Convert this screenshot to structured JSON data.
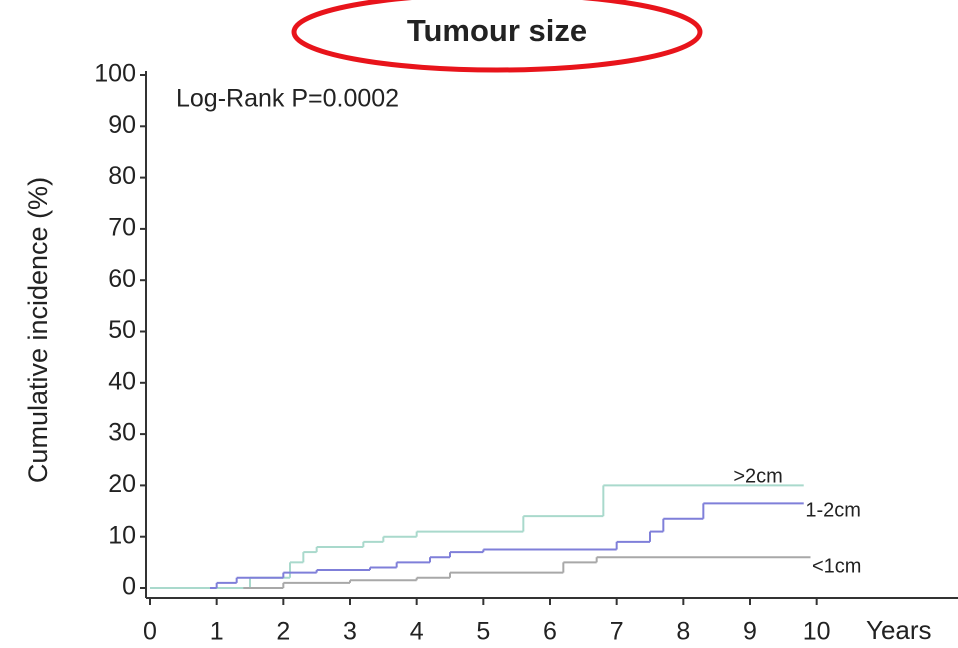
{
  "chart_data": {
    "type": "line",
    "step": "post",
    "title": "Tumour size",
    "annotation": "Log-Rank  P=0.0002",
    "y_label": "Cumulative incidence (%)",
    "x_label": "Years",
    "xlim": [
      0,
      12
    ],
    "ylim": [
      0,
      100
    ],
    "xticks": [
      0,
      1,
      2,
      3,
      4,
      5,
      6,
      7,
      8,
      9,
      10
    ],
    "yticks": [
      0,
      10,
      20,
      30,
      40,
      50,
      60,
      70,
      80,
      90,
      100
    ],
    "series": [
      {
        "name": ">2cm",
        "color": "#a9d9cc",
        "x": [
          0,
          1.5,
          2.1,
          2.3,
          2.5,
          3.2,
          3.5,
          4.0,
          5.6,
          6.8,
          9.8
        ],
        "values": [
          0,
          2,
          5,
          7,
          8,
          9,
          10,
          11,
          14,
          20,
          20
        ]
      },
      {
        "name": "1-2cm",
        "color": "#7f7fd9",
        "x": [
          0.9,
          1.0,
          1.3,
          2.0,
          2.5,
          3.3,
          3.7,
          4.2,
          4.5,
          5.0,
          7.0,
          7.5,
          7.7,
          8.3,
          9.8
        ],
        "values": [
          0,
          1,
          2,
          3,
          3.5,
          4,
          5,
          6,
          7,
          7.5,
          9,
          11,
          13.5,
          16.5,
          16.5
        ]
      },
      {
        "name": "<1cm",
        "color": "#a8a8a8",
        "x": [
          1.4,
          2.0,
          3.0,
          4.0,
          4.5,
          6.2,
          6.7,
          9.9
        ],
        "values": [
          0,
          1,
          1.5,
          2,
          3,
          5,
          6,
          6
        ]
      }
    ]
  }
}
